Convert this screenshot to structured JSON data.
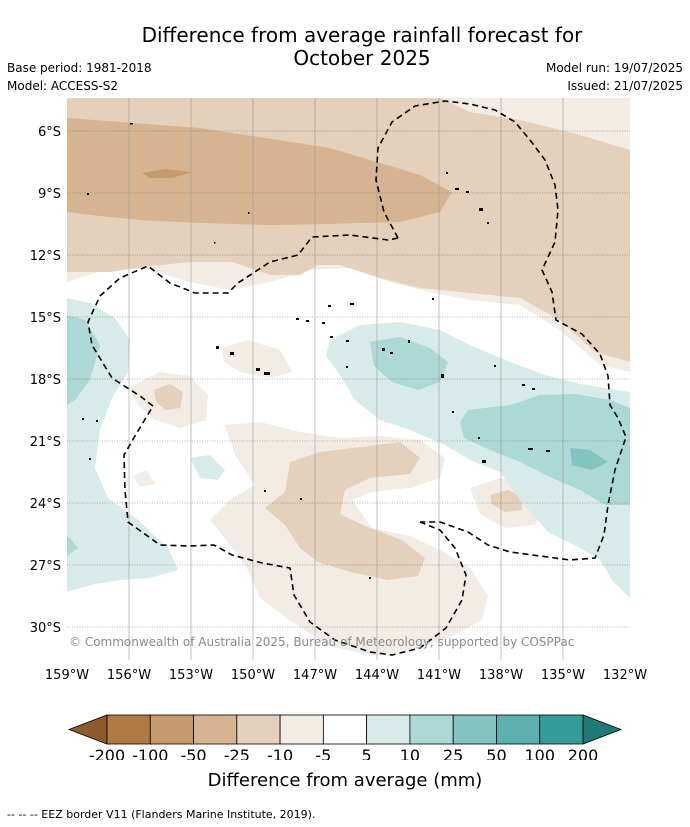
{
  "header": {
    "title_line1": "Difference from average rainfall forecast for",
    "title_line2": "October 2025",
    "base_period": "Base period: 1981-2018",
    "model": "Model: ACCESS-S2",
    "model_run": "Model run: 19/07/2025",
    "issued": "Issued: 21/07/2025"
  },
  "map": {
    "lat_labels": [
      "6°S",
      "9°S",
      "12°S",
      "15°S",
      "18°S",
      "21°S",
      "24°S",
      "27°S",
      "30°S"
    ],
    "lon_labels": [
      "159°W",
      "156°W",
      "153°W",
      "150°W",
      "147°W",
      "144°W",
      "141°W",
      "138°W",
      "135°W",
      "132°W"
    ],
    "credit": "© Commonwealth of Australia 2025, Bureau of Meteorology, supported by COSPPac",
    "eez_line_style": "dashed"
  },
  "colorbar": {
    "label": "Difference from average (mm)",
    "ticks": [
      "-200",
      "-100",
      "-50",
      "-25",
      "-10",
      "-5",
      "5",
      "10",
      "25",
      "50",
      "100",
      "200"
    ],
    "colors": {
      "below_min": "#8c5a2b",
      "bins": [
        "#b07a45",
        "#c69a6e",
        "#d6b491",
        "#e5d0bb",
        "#f2ece5",
        "#ffffff",
        "#d7ecea",
        "#acd8d6",
        "#83c4c1",
        "#5bb0ad",
        "#359d99"
      ],
      "above_max": "#1d7a76"
    }
  },
  "footer": {
    "legend_text": "--  --  -- EEZ border V11 (Flanders Marine Institute, 2019)."
  }
}
